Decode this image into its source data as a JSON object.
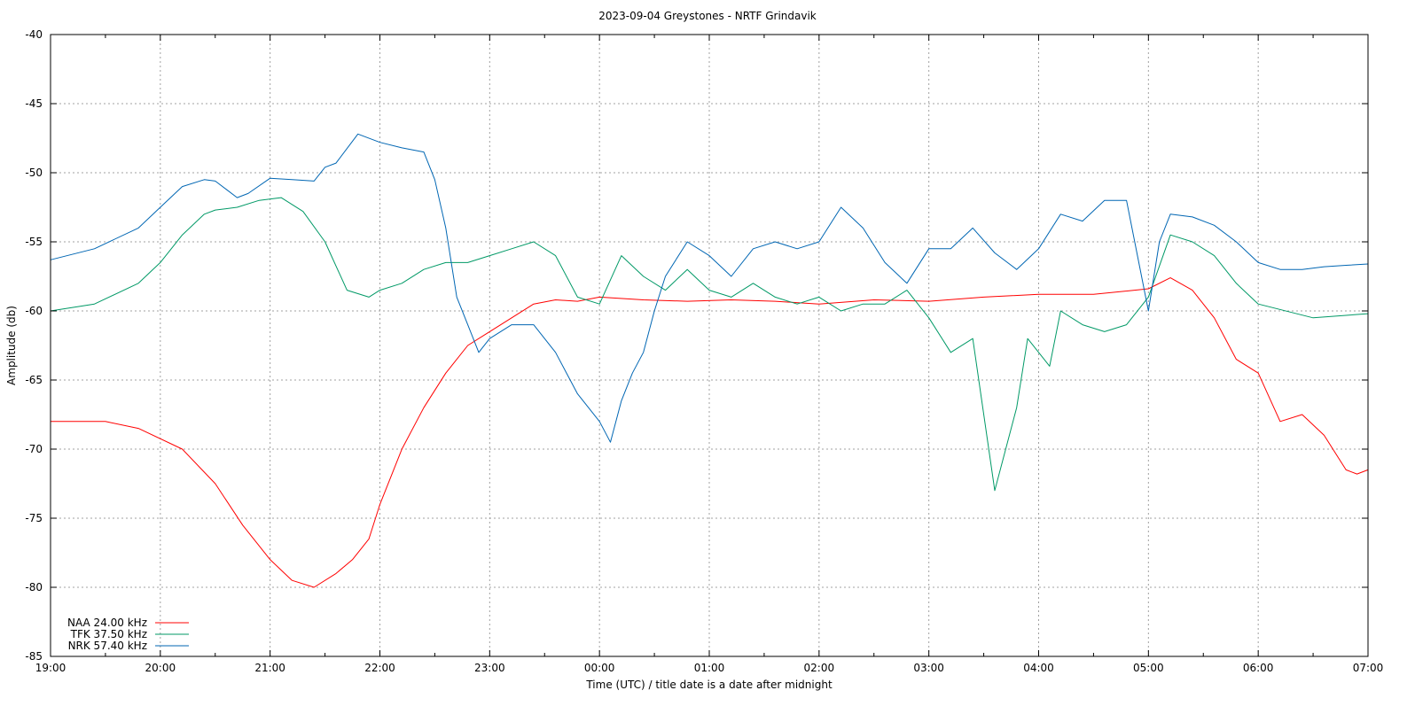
{
  "chart_data": {
    "type": "line",
    "title": "2023-09-04 Greystones - NRTF Grindavik",
    "xlabel": "Time (UTC) / title date is a date after midnight",
    "ylabel": "Amplitude (db)",
    "ylim": [
      -85,
      -40
    ],
    "yticks": [
      -40,
      -45,
      -50,
      -55,
      -60,
      -65,
      -70,
      -75,
      -80,
      -85
    ],
    "xlim": [
      0,
      12
    ],
    "xticks": [
      "19:00",
      "20:00",
      "21:00",
      "22:00",
      "23:00",
      "00:00",
      "01:00",
      "02:00",
      "03:00",
      "04:00",
      "05:00",
      "06:00",
      "07:00"
    ],
    "grid": true,
    "legend_position": "bottom-left",
    "series": [
      {
        "name": "NAA 24.00 kHz",
        "color": "#ff0000",
        "x": [
          0,
          0.5,
          0.8,
          1.2,
          1.5,
          1.75,
          2.0,
          2.2,
          2.4,
          2.6,
          2.75,
          2.9,
          3.0,
          3.2,
          3.4,
          3.6,
          3.8,
          4.0,
          4.2,
          4.4,
          4.6,
          4.8,
          5.0,
          5.4,
          5.8,
          6.2,
          6.6,
          7.0,
          7.5,
          8.0,
          8.5,
          9.0,
          9.5,
          10.0,
          10.2,
          10.4,
          10.6,
          10.8,
          11.0,
          11.2,
          11.4,
          11.6,
          11.8,
          11.9,
          12.0
        ],
        "y": [
          -68,
          -68,
          -68.5,
          -70,
          -72.5,
          -75.5,
          -78,
          -79.5,
          -80,
          -79,
          -78,
          -76.5,
          -74,
          -70,
          -67,
          -64.5,
          -62.5,
          -61.5,
          -60.5,
          -59.5,
          -59.2,
          -59.3,
          -59,
          -59.2,
          -59.3,
          -59.2,
          -59.3,
          -59.5,
          -59.2,
          -59.3,
          -59,
          -58.8,
          -58.8,
          -58.4,
          -57.6,
          -58.5,
          -60.5,
          -63.5,
          -64.5,
          -68,
          -67.5,
          -69,
          -71.5,
          -71.8,
          -71.5
        ]
      },
      {
        "name": "TFK 37.50 kHz",
        "color": "#009966",
        "x": [
          0,
          0.4,
          0.8,
          1.0,
          1.2,
          1.4,
          1.5,
          1.7,
          1.9,
          2.1,
          2.3,
          2.5,
          2.7,
          2.9,
          3.0,
          3.2,
          3.4,
          3.6,
          3.8,
          4.0,
          4.2,
          4.4,
          4.6,
          4.8,
          5.0,
          5.2,
          5.4,
          5.6,
          5.8,
          6.0,
          6.2,
          6.4,
          6.6,
          6.8,
          7.0,
          7.2,
          7.4,
          7.6,
          7.8,
          8.0,
          8.2,
          8.4,
          8.6,
          8.8,
          8.9,
          9.0,
          9.1,
          9.2,
          9.4,
          9.6,
          9.8,
          10.0,
          10.2,
          10.4,
          10.6,
          10.8,
          11.0,
          11.5,
          12.0
        ],
        "y": [
          -60,
          -59.5,
          -58,
          -56.5,
          -54.5,
          -53,
          -52.7,
          -52.5,
          -52,
          -51.8,
          -52.8,
          -55,
          -58.5,
          -59,
          -58.5,
          -58,
          -57,
          -56.5,
          -56.5,
          -56,
          -55.5,
          -55,
          -56,
          -59,
          -59.5,
          -56,
          -57.5,
          -58.5,
          -57,
          -58.5,
          -59,
          -58,
          -59,
          -59.5,
          -59,
          -60,
          -59.5,
          -59.5,
          -58.5,
          -60.5,
          -63,
          -62,
          -73,
          -67,
          -62,
          -63,
          -64,
          -60,
          -61,
          -61.5,
          -61,
          -59,
          -54.5,
          -55,
          -56,
          -58,
          -59.5,
          -60.5,
          -60.2
        ]
      },
      {
        "name": "NRK 57.40 kHz",
        "color": "#0066b3",
        "x": [
          0,
          0.4,
          0.8,
          1.0,
          1.2,
          1.4,
          1.5,
          1.6,
          1.7,
          1.8,
          2.0,
          2.2,
          2.4,
          2.5,
          2.6,
          2.8,
          3.0,
          3.2,
          3.4,
          3.5,
          3.6,
          3.7,
          3.8,
          3.9,
          4.0,
          4.2,
          4.4,
          4.6,
          4.8,
          5.0,
          5.1,
          5.2,
          5.3,
          5.4,
          5.5,
          5.6,
          5.8,
          6.0,
          6.2,
          6.4,
          6.6,
          6.8,
          7.0,
          7.2,
          7.4,
          7.6,
          7.8,
          8.0,
          8.2,
          8.4,
          8.6,
          8.8,
          9.0,
          9.2,
          9.4,
          9.6,
          9.8,
          10.0,
          10.1,
          10.2,
          10.4,
          10.6,
          10.8,
          11.0,
          11.2,
          11.4,
          11.6,
          11.8,
          12.0
        ],
        "y": [
          -56.3,
          -55.5,
          -54,
          -52.5,
          -51,
          -50.5,
          -50.6,
          -51.2,
          -51.8,
          -51.5,
          -50.4,
          -50.5,
          -50.6,
          -49.6,
          -49.3,
          -47.2,
          -47.8,
          -48.2,
          -48.5,
          -50.5,
          -54,
          -59,
          -61,
          -63,
          -62,
          -61,
          -61,
          -63,
          -66,
          -68,
          -69.5,
          -66.5,
          -64.5,
          -63,
          -60,
          -57.5,
          -55,
          -56,
          -57.5,
          -55.5,
          -55,
          -55.5,
          -55,
          -52.5,
          -54,
          -56.5,
          -58,
          -55.5,
          -55.5,
          -54,
          -55.8,
          -57,
          -55.5,
          -53,
          -53.5,
          -52,
          -52,
          -60,
          -55,
          -53,
          -53.2,
          -53.8,
          -55,
          -56.5,
          -57,
          -57,
          -56.8,
          -56.7,
          -56.6
        ]
      }
    ]
  }
}
